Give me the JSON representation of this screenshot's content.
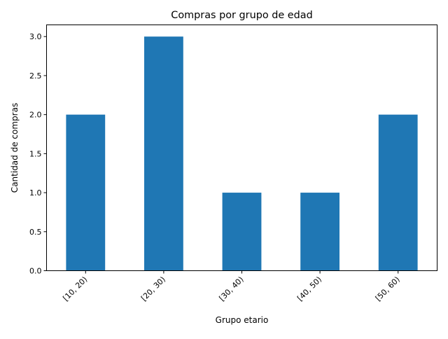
{
  "chart_data": {
    "type": "bar",
    "title": "Compras por grupo de edad",
    "xlabel": "Grupo etario",
    "ylabel": "Cantidad de compras",
    "categories": [
      "[10, 20)",
      "[20, 30)",
      "[30, 40)",
      "[40, 50)",
      "[50, 60)"
    ],
    "values": [
      2,
      3,
      1,
      1,
      2
    ],
    "ylim": [
      0,
      3.15
    ],
    "yticks": [
      0.0,
      0.5,
      1.0,
      1.5,
      2.0,
      2.5,
      3.0
    ],
    "ytick_labels": [
      "0.0",
      "0.5",
      "1.0",
      "1.5",
      "2.0",
      "2.5",
      "3.0"
    ],
    "grid": false,
    "legend": "none",
    "bar_color": "#1f77b4",
    "xtick_rotation": "45°"
  }
}
